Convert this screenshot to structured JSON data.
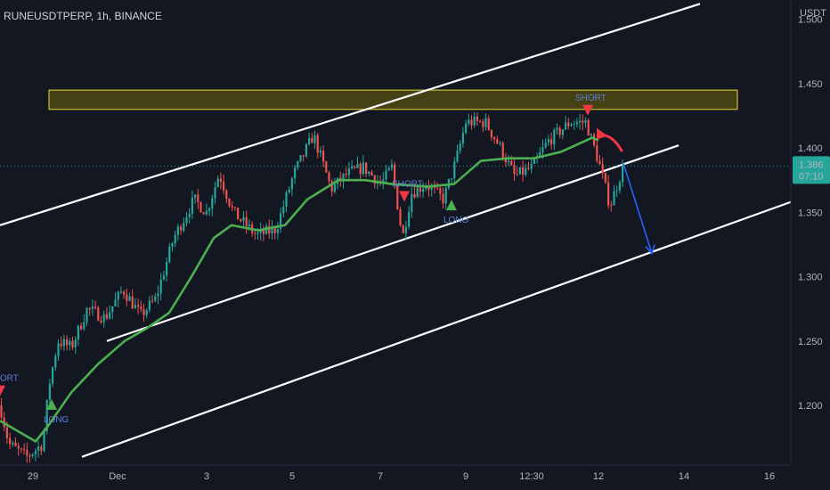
{
  "header": {
    "symbol": "RUNEUSDTPERP, 1h, BINANCE",
    "unit": "USDT"
  },
  "price_badge": {
    "price": "1.386",
    "countdown": "07:10"
  },
  "colors": {
    "background": "#131722",
    "up": "#26a69a",
    "down": "#ef5350",
    "ema": "#4caf50",
    "channel": "#ffffff",
    "zone_fill": "#4d4a12",
    "zone_border": "#e8d838",
    "badge": "#26a69a",
    "projection": "#2962ff",
    "long": "#4caf50",
    "short_marker": "#f23645",
    "short_text": "#5d7ed8"
  },
  "chart_data": {
    "type": "candlestick",
    "symbol": "RUNEUSDTPERP",
    "timeframe": "1h",
    "exchange": "BINANCE",
    "x_ticks": [
      "29",
      "Dec",
      "3",
      "5",
      "7",
      "9",
      "12:30",
      "12",
      "14",
      "16"
    ],
    "y_ticks": [
      "1.500",
      "1.450",
      "1.400",
      "1.350",
      "1.300",
      "1.250",
      "1.200"
    ],
    "ylim": [
      1.155,
      1.515
    ],
    "last_price": 1.386,
    "grid": false,
    "price_path": [
      [
        0,
        1.2
      ],
      [
        10,
        1.17
      ],
      [
        30,
        1.16
      ],
      [
        48,
        1.17
      ],
      [
        55,
        1.215
      ],
      [
        65,
        1.25
      ],
      [
        80,
        1.245
      ],
      [
        98,
        1.275
      ],
      [
        118,
        1.268
      ],
      [
        138,
        1.29
      ],
      [
        158,
        1.27
      ],
      [
        175,
        1.283
      ],
      [
        195,
        1.33
      ],
      [
        218,
        1.36
      ],
      [
        232,
        1.35
      ],
      [
        246,
        1.38
      ],
      [
        262,
        1.35
      ],
      [
        288,
        1.332
      ],
      [
        310,
        1.337
      ],
      [
        330,
        1.38
      ],
      [
        352,
        1.41
      ],
      [
        372,
        1.368
      ],
      [
        390,
        1.38
      ],
      [
        408,
        1.385
      ],
      [
        428,
        1.372
      ],
      [
        440,
        1.385
      ],
      [
        452,
        1.33
      ],
      [
        462,
        1.365
      ],
      [
        478,
        1.372
      ],
      [
        498,
        1.36
      ],
      [
        512,
        1.39
      ],
      [
        523,
        1.42
      ],
      [
        545,
        1.42
      ],
      [
        562,
        1.4
      ],
      [
        578,
        1.378
      ],
      [
        598,
        1.385
      ],
      [
        615,
        1.405
      ],
      [
        640,
        1.42
      ],
      [
        658,
        1.42
      ],
      [
        672,
        1.39
      ],
      [
        685,
        1.355
      ],
      [
        700,
        1.386
      ]
    ],
    "ema_path": [
      [
        0,
        1.188
      ],
      [
        20,
        1.18
      ],
      [
        40,
        1.172
      ],
      [
        55,
        1.185
      ],
      [
        80,
        1.21
      ],
      [
        110,
        1.232
      ],
      [
        140,
        1.25
      ],
      [
        165,
        1.26
      ],
      [
        190,
        1.272
      ],
      [
        215,
        1.3
      ],
      [
        240,
        1.33
      ],
      [
        260,
        1.34
      ],
      [
        290,
        1.336
      ],
      [
        320,
        1.34
      ],
      [
        345,
        1.36
      ],
      [
        380,
        1.375
      ],
      [
        410,
        1.375
      ],
      [
        440,
        1.372
      ],
      [
        480,
        1.37
      ],
      [
        510,
        1.372
      ],
      [
        540,
        1.39
      ],
      [
        570,
        1.392
      ],
      [
        600,
        1.392
      ],
      [
        630,
        1.397
      ],
      [
        665,
        1.408
      ],
      [
        672,
        1.406
      ]
    ],
    "channels": [
      {
        "name": "upper",
        "from": [
          0,
          1.34
        ],
        "to": [
          786,
          1.512
        ]
      },
      {
        "name": "middle",
        "from": [
          120,
          1.25
        ],
        "to": [
          762,
          1.402
        ]
      },
      {
        "name": "lower",
        "from": [
          92,
          1.16
        ],
        "to": [
          916,
          1.365
        ]
      }
    ],
    "resistance_zone": {
      "y_from": 1.43,
      "y_to": 1.445,
      "x_from": 55,
      "x_to": 828
    },
    "signals": [
      {
        "label": "SHORT",
        "direction": "short",
        "at": [
          0,
          1.212
        ]
      },
      {
        "label": "LONG",
        "direction": "long",
        "at": [
          58,
          1.2
        ]
      },
      {
        "label": "SHORT",
        "direction": "short",
        "at": [
          454,
          1.363
        ]
      },
      {
        "label": "LONG",
        "direction": "long",
        "at": [
          507,
          1.355
        ]
      },
      {
        "label": "SHORT",
        "direction": "short",
        "at": [
          660,
          1.43
        ]
      }
    ],
    "annotations": [
      {
        "type": "curved-arrow",
        "from": [
          698,
          1.398
        ],
        "to": [
          672,
          1.41
        ]
      },
      {
        "type": "projection-arrow",
        "from": [
          700,
          1.388
        ],
        "to": [
          732,
          1.318
        ]
      }
    ]
  }
}
